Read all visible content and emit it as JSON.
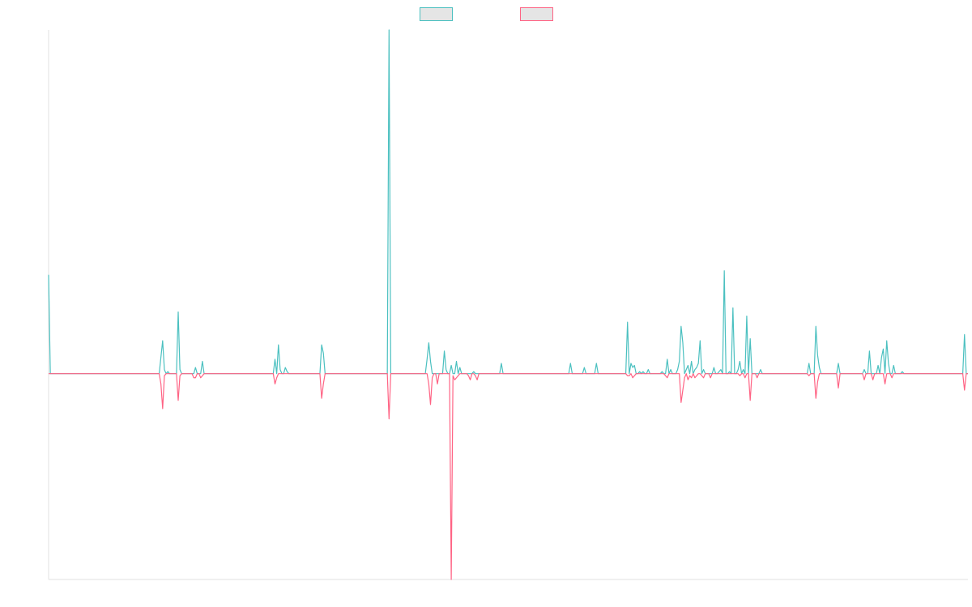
{
  "chart_data": {
    "type": "line",
    "title": "",
    "xlabel": "",
    "ylabel": "",
    "ylim": [
      -1,
      1.67
    ],
    "grid": false,
    "legend": "top-center",
    "series": [
      {
        "name": "",
        "color": "#4bc0c0",
        "fill": "#e5e5e5",
        "values": [
          0.48,
          0.0,
          0.0,
          0.0,
          0.0,
          0.0,
          0.0,
          0.0,
          0.0,
          0.0,
          0.0,
          0.0,
          0.0,
          0.0,
          0.0,
          0.0,
          0.0,
          0.0,
          0.0,
          0.0,
          0.0,
          0.0,
          0.0,
          0.0,
          0.0,
          0.0,
          0.0,
          0.0,
          0.0,
          0.0,
          0.0,
          0.0,
          0.0,
          0.0,
          0.0,
          0.0,
          0.0,
          0.0,
          0.0,
          0.0,
          0.0,
          0.0,
          0.0,
          0.0,
          0.0,
          0.0,
          0.0,
          0.0,
          0.0,
          0.0,
          0.0,
          0.0,
          0.0,
          0.0,
          0.0,
          0.0,
          0.0,
          0.0,
          0.0,
          0.0,
          0.0,
          0.0,
          0.0,
          0.0,
          0.0,
          0.08,
          0.16,
          0.02,
          0.0,
          0.01,
          0.0,
          0.0,
          0.0,
          0.0,
          0.0,
          0.3,
          0.02,
          0.0,
          0.0,
          0.0,
          0.0,
          0.0,
          0.0,
          0.0,
          0.0,
          0.03,
          0.0,
          0.0,
          0.0,
          0.06,
          0.0,
          0.0,
          0.0,
          0.0,
          0.0,
          0.0,
          0.0,
          0.0,
          0.0,
          0.0,
          0.0,
          0.0,
          0.0,
          0.0,
          0.0,
          0.0,
          0.0,
          0.0,
          0.0,
          0.0,
          0.0,
          0.0,
          0.0,
          0.0,
          0.0,
          0.0,
          0.0,
          0.0,
          0.0,
          0.0,
          0.0,
          0.0,
          0.0,
          0.0,
          0.0,
          0.0,
          0.0,
          0.0,
          0.0,
          0.0,
          0.0,
          0.07,
          0.0,
          0.14,
          0.02,
          0.0,
          0.0,
          0.03,
          0.01,
          0.0,
          0.0,
          0.0,
          0.0,
          0.0,
          0.0,
          0.0,
          0.0,
          0.0,
          0.0,
          0.0,
          0.0,
          0.0,
          0.0,
          0.0,
          0.0,
          0.0,
          0.0,
          0.0,
          0.14,
          0.1,
          0.0,
          0.0,
          0.0,
          0.0,
          0.0,
          0.0,
          0.0,
          0.0,
          0.0,
          0.0,
          0.0,
          0.0,
          0.0,
          0.0,
          0.0,
          0.0,
          0.0,
          0.0,
          0.0,
          0.0,
          0.0,
          0.0,
          0.0,
          0.0,
          0.0,
          0.0,
          0.0,
          0.0,
          0.0,
          0.0,
          0.0,
          0.0,
          0.0,
          0.0,
          0.0,
          0.0,
          0.0,
          1.67,
          0.0,
          0.0,
          0.0,
          0.0,
          0.0,
          0.0,
          0.0,
          0.0,
          0.0,
          0.0,
          0.0,
          0.0,
          0.0,
          0.0,
          0.0,
          0.0,
          0.0,
          0.0,
          0.0,
          0.0,
          0.0,
          0.07,
          0.15,
          0.06,
          0.0,
          0.0,
          0.0,
          0.0,
          0.0,
          0.0,
          0.0,
          0.11,
          0.02,
          0.0,
          0.0,
          0.04,
          0.0,
          0.0,
          0.06,
          0.0,
          0.03,
          0.0,
          0.0,
          0.0,
          0.0,
          0.0,
          0.0,
          0.0,
          0.01,
          0.0,
          0.0,
          0.0,
          0.0,
          0.0,
          0.0,
          0.0,
          0.0,
          0.0,
          0.0,
          0.0,
          0.0,
          0.0,
          0.0,
          0.0,
          0.05,
          0.0,
          0.0,
          0.0,
          0.0,
          0.0,
          0.0,
          0.0,
          0.0,
          0.0,
          0.0,
          0.0,
          0.0,
          0.0,
          0.0,
          0.0,
          0.0,
          0.0,
          0.0,
          0.0,
          0.0,
          0.0,
          0.0,
          0.0,
          0.0,
          0.0,
          0.0,
          0.0,
          0.0,
          0.0,
          0.0,
          0.0,
          0.0,
          0.0,
          0.0,
          0.0,
          0.0,
          0.0,
          0.0,
          0.0,
          0.05,
          0.0,
          0.0,
          0.0,
          0.0,
          0.0,
          0.0,
          0.0,
          0.03,
          0.0,
          0.0,
          0.0,
          0.0,
          0.0,
          0.0,
          0.05,
          0.0,
          0.0,
          0.0,
          0.0,
          0.0,
          0.0,
          0.0,
          0.0,
          0.0,
          0.0,
          0.0,
          0.0,
          0.0,
          0.0,
          0.0,
          0.0,
          0.0,
          0.25,
          0.0,
          0.05,
          0.03,
          0.04,
          0.0,
          0.0,
          0.01,
          0.0,
          0.01,
          0.0,
          0.0,
          0.02,
          0.0,
          0.0,
          0.0,
          0.0,
          0.0,
          0.0,
          0.0,
          0.01,
          0.0,
          0.0,
          0.07,
          0.0,
          0.02,
          0.0,
          0.0,
          0.0,
          0.02,
          0.06,
          0.23,
          0.15,
          0.0,
          0.02,
          0.04,
          0.0,
          0.06,
          0.0,
          0.02,
          0.03,
          0.05,
          0.16,
          0.0,
          0.02,
          0.0,
          0.0,
          0.0,
          0.0,
          0.0,
          0.03,
          0.0,
          0.0,
          0.01,
          0.02,
          0.0,
          0.5,
          0.0,
          0.0,
          0.01,
          0.0,
          0.32,
          0.0,
          0.0,
          0.02,
          0.06,
          0.0,
          0.02,
          0.0,
          0.28,
          0.0,
          0.17,
          0.0,
          0.0,
          0.0,
          0.0,
          0.0,
          0.02,
          0.0,
          0.0,
          0.0,
          0.0,
          0.0,
          0.0,
          0.0,
          0.0,
          0.0,
          0.0,
          0.0,
          0.0,
          0.0,
          0.0,
          0.0,
          0.0,
          0.0,
          0.0,
          0.0,
          0.0,
          0.0,
          0.0,
          0.0,
          0.0,
          0.0,
          0.0,
          0.0,
          0.05,
          0.0,
          0.0,
          0.0,
          0.23,
          0.09,
          0.03,
          0.0,
          0.0,
          0.0,
          0.0,
          0.0,
          0.0,
          0.0,
          0.0,
          0.0,
          0.0,
          0.05,
          0.0,
          0.0,
          0.0,
          0.0,
          0.0,
          0.0,
          0.0,
          0.0,
          0.0,
          0.0,
          0.0,
          0.0,
          0.0,
          0.0,
          0.02,
          0.0,
          0.0,
          0.11,
          0.0,
          0.0,
          0.0,
          0.0,
          0.04,
          0.0,
          0.08,
          0.12,
          0.0,
          0.16,
          0.05,
          0.0,
          0.0,
          0.04,
          0.0,
          0.0,
          0.0,
          0.0,
          0.01,
          0.0,
          0.0,
          0.0,
          0.0,
          0.0,
          0.0,
          0.0,
          0.0,
          0.0,
          0.0,
          0.0,
          0.0,
          0.0,
          0.0,
          0.0,
          0.0,
          0.0,
          0.0,
          0.0,
          0.0,
          0.0,
          0.0,
          0.0,
          0.0,
          0.0,
          0.0,
          0.0,
          0.0,
          0.0,
          0.0,
          0.0,
          0.0,
          0.0,
          0.0,
          0.0,
          0.19,
          0.0,
          0.0
        ]
      },
      {
        "name": "",
        "color": "#ff6384",
        "fill": "#e5e5e5",
        "values": [
          0.0,
          0.0,
          0.0,
          0.0,
          0.0,
          0.0,
          0.0,
          0.0,
          0.0,
          0.0,
          0.0,
          0.0,
          0.0,
          0.0,
          0.0,
          0.0,
          0.0,
          0.0,
          0.0,
          0.0,
          0.0,
          0.0,
          0.0,
          0.0,
          0.0,
          0.0,
          0.0,
          0.0,
          0.0,
          0.0,
          0.0,
          0.0,
          0.0,
          0.0,
          0.0,
          0.0,
          0.0,
          0.0,
          0.0,
          0.0,
          0.0,
          0.0,
          0.0,
          0.0,
          0.0,
          0.0,
          0.0,
          0.0,
          0.0,
          0.0,
          0.0,
          0.0,
          0.0,
          0.0,
          0.0,
          0.0,
          0.0,
          0.0,
          0.0,
          0.0,
          0.0,
          0.0,
          0.0,
          0.0,
          0.0,
          -0.05,
          -0.17,
          -0.01,
          0.0,
          0.0,
          0.0,
          0.0,
          0.0,
          0.0,
          0.0,
          -0.13,
          -0.01,
          0.0,
          0.0,
          0.0,
          0.0,
          0.0,
          0.0,
          0.0,
          -0.02,
          -0.02,
          0.0,
          0.0,
          -0.02,
          -0.01,
          0.0,
          0.0,
          0.0,
          0.0,
          0.0,
          0.0,
          0.0,
          0.0,
          0.0,
          0.0,
          0.0,
          0.0,
          0.0,
          0.0,
          0.0,
          0.0,
          0.0,
          0.0,
          0.0,
          0.0,
          0.0,
          0.0,
          0.0,
          0.0,
          0.0,
          0.0,
          0.0,
          0.0,
          0.0,
          0.0,
          0.0,
          0.0,
          0.0,
          0.0,
          0.0,
          0.0,
          0.0,
          0.0,
          0.0,
          0.0,
          0.0,
          -0.05,
          -0.02,
          0.0,
          0.0,
          0.0,
          0.0,
          0.0,
          0.0,
          0.0,
          0.0,
          0.0,
          0.0,
          0.0,
          0.0,
          0.0,
          0.0,
          0.0,
          0.0,
          0.0,
          0.0,
          0.0,
          0.0,
          0.0,
          0.0,
          0.0,
          0.0,
          0.0,
          -0.12,
          -0.05,
          0.0,
          0.0,
          0.0,
          0.0,
          0.0,
          0.0,
          0.0,
          0.0,
          0.0,
          0.0,
          0.0,
          0.0,
          0.0,
          0.0,
          0.0,
          0.0,
          0.0,
          0.0,
          0.0,
          0.0,
          0.0,
          0.0,
          0.0,
          0.0,
          0.0,
          0.0,
          0.0,
          0.0,
          0.0,
          0.0,
          0.0,
          0.0,
          0.0,
          0.0,
          0.0,
          0.0,
          0.0,
          -0.22,
          0.0,
          0.0,
          0.0,
          0.0,
          0.0,
          0.0,
          0.0,
          0.0,
          0.0,
          0.0,
          0.0,
          0.0,
          0.0,
          0.0,
          0.0,
          0.0,
          0.0,
          0.0,
          0.0,
          0.0,
          0.0,
          0.0,
          -0.05,
          -0.15,
          -0.02,
          0.0,
          0.0,
          -0.05,
          0.0,
          0.0,
          0.0,
          0.0,
          0.0,
          0.0,
          0.0,
          -1.0,
          -0.01,
          -0.03,
          -0.02,
          -0.01,
          0.0,
          0.0,
          0.0,
          0.0,
          0.0,
          -0.01,
          -0.03,
          0.0,
          0.0,
          -0.01,
          -0.03,
          0.0,
          0.0,
          0.0,
          0.0,
          0.0,
          0.0,
          0.0,
          0.0,
          0.0,
          0.0,
          0.0,
          0.0,
          0.0,
          0.0,
          0.0,
          0.0,
          0.0,
          0.0,
          0.0,
          0.0,
          0.0,
          0.0,
          0.0,
          0.0,
          0.0,
          0.0,
          0.0,
          0.0,
          0.0,
          0.0,
          0.0,
          0.0,
          0.0,
          0.0,
          0.0,
          0.0,
          0.0,
          0.0,
          0.0,
          0.0,
          0.0,
          0.0,
          0.0,
          0.0,
          0.0,
          0.0,
          0.0,
          0.0,
          0.0,
          0.0,
          0.0,
          0.0,
          0.0,
          0.0,
          0.0,
          0.0,
          0.0,
          0.0,
          0.0,
          0.0,
          0.0,
          0.0,
          0.0,
          0.0,
          0.0,
          0.0,
          0.0,
          0.0,
          0.0,
          0.0,
          0.0,
          0.0,
          0.0,
          0.0,
          0.0,
          0.0,
          0.0,
          0.0,
          0.0,
          0.0,
          0.0,
          0.0,
          0.0,
          0.0,
          0.0,
          0.0,
          -0.01,
          -0.01,
          0.0,
          -0.02,
          -0.01,
          0.0,
          0.0,
          0.0,
          0.0,
          0.0,
          0.0,
          0.0,
          0.0,
          0.0,
          0.0,
          0.0,
          0.0,
          0.0,
          0.0,
          0.0,
          0.0,
          0.0,
          -0.01,
          -0.02,
          0.0,
          0.0,
          0.0,
          0.0,
          0.0,
          0.0,
          0.0,
          -0.14,
          -0.08,
          -0.02,
          0.0,
          -0.03,
          -0.01,
          -0.02,
          0.0,
          -0.02,
          -0.01,
          0.0,
          0.0,
          -0.01,
          -0.02,
          0.0,
          0.0,
          0.0,
          -0.02,
          0.0,
          0.0,
          0.0,
          0.0,
          0.0,
          0.0,
          0.0,
          0.0,
          0.0,
          0.0,
          0.0,
          0.0,
          0.0,
          0.0,
          0.0,
          0.0,
          -0.01,
          0.0,
          0.0,
          -0.02,
          0.0,
          0.0,
          -0.13,
          0.0,
          0.0,
          0.0,
          -0.02,
          0.0,
          0.0,
          0.0,
          0.0,
          0.0,
          0.0,
          0.0,
          0.0,
          0.0,
          0.0,
          0.0,
          0.0,
          0.0,
          0.0,
          0.0,
          0.0,
          0.0,
          0.0,
          0.0,
          0.0,
          0.0,
          0.0,
          0.0,
          0.0,
          0.0,
          0.0,
          0.0,
          0.0,
          0.0,
          -0.01,
          0.0,
          0.0,
          0.0,
          -0.12,
          -0.04,
          0.0,
          0.0,
          0.0,
          0.0,
          0.0,
          0.0,
          0.0,
          0.0,
          0.0,
          0.0,
          0.0,
          -0.07,
          0.0,
          0.0,
          0.0,
          0.0,
          0.0,
          0.0,
          0.0,
          0.0,
          0.0,
          0.0,
          0.0,
          0.0,
          0.0,
          0.0,
          -0.03,
          0.0,
          0.0,
          0.0,
          0.0,
          -0.03,
          0.0,
          0.0,
          0.0,
          0.0,
          0.0,
          0.0,
          -0.05,
          0.0,
          0.0,
          0.0,
          -0.02,
          0.0,
          0.0,
          0.0,
          0.0,
          0.0,
          0.0,
          0.0,
          0.0,
          0.0,
          0.0,
          0.0,
          0.0,
          0.0,
          0.0,
          0.0,
          0.0,
          0.0,
          0.0,
          0.0,
          0.0,
          0.0,
          0.0,
          0.0,
          0.0,
          0.0,
          0.0,
          0.0,
          0.0,
          0.0,
          0.0,
          0.0,
          0.0,
          0.0,
          0.0,
          0.0,
          0.0,
          0.0,
          0.0,
          0.0,
          0.0,
          0.0,
          -0.08,
          0.0,
          0.0
        ]
      }
    ]
  }
}
